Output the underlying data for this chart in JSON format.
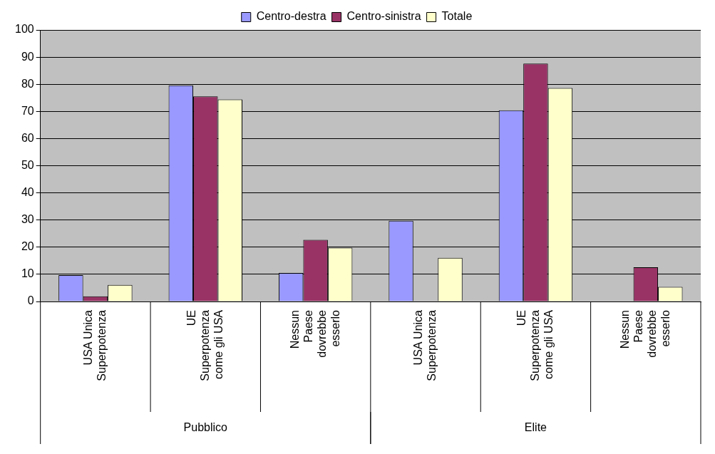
{
  "chart_data": {
    "type": "bar",
    "categories": [
      "USA Unica Superpotenza",
      "UE Superpotenza come gli USA",
      "Nessun Paese dovrebbe esserlo",
      "USA Unica Superpotenza",
      "UE Superpotenza come gli USA",
      "Nessun Paese dovrebbe esserlo"
    ],
    "series": [
      {
        "name": "Centro-destra",
        "color": "#9999ff",
        "values": [
          9.7,
          79.6,
          10.5,
          29.7,
          70.4,
          0
        ]
      },
      {
        "name": "Centro-sinistra",
        "color": "#993366",
        "values": [
          1.9,
          75.5,
          22.7,
          0,
          87.6,
          12.6
        ]
      },
      {
        "name": "Totale",
        "color": "#ffffcc",
        "values": [
          6.1,
          74.4,
          19.8,
          16.1,
          78.6,
          5.4
        ]
      }
    ],
    "annotations": [
      "Pubblico",
      "Elite"
    ],
    "ylim": [
      0,
      100
    ],
    "yticks": [
      0,
      10,
      20,
      30,
      40,
      50,
      60,
      70,
      80,
      90,
      100
    ],
    "grid": "y",
    "legend": "top"
  }
}
